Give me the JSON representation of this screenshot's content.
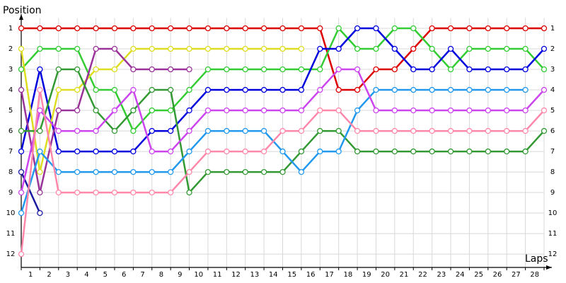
{
  "chart_data": {
    "type": "line",
    "ylabel": "Position",
    "xlabel": "Laps",
    "x": [
      0,
      1,
      2,
      3,
      4,
      5,
      6,
      7,
      8,
      9,
      10,
      11,
      12,
      13,
      14,
      15,
      16,
      17,
      18,
      19,
      20,
      21,
      22,
      23,
      24,
      25,
      26,
      27,
      28
    ],
    "xlim": [
      0,
      28
    ],
    "xticks": [
      {
        "value": 0.5,
        "label": "1"
      },
      {
        "value": 1.5,
        "label": "2"
      },
      {
        "value": 2.5,
        "label": "3"
      },
      {
        "value": 3.5,
        "label": "4"
      },
      {
        "value": 4.5,
        "label": "5"
      },
      {
        "value": 5.5,
        "label": "6"
      },
      {
        "value": 6.5,
        "label": "7"
      },
      {
        "value": 7.5,
        "label": "8"
      },
      {
        "value": 8.5,
        "label": "9"
      },
      {
        "value": 9.5,
        "label": "10"
      },
      {
        "value": 10.5,
        "label": "11"
      },
      {
        "value": 11.5,
        "label": "12"
      },
      {
        "value": 12.5,
        "label": "13"
      },
      {
        "value": 13.5,
        "label": "14"
      },
      {
        "value": 14.5,
        "label": "15"
      },
      {
        "value": 15.5,
        "label": "16"
      },
      {
        "value": 16.5,
        "label": "17"
      },
      {
        "value": 17.5,
        "label": "18"
      },
      {
        "value": 18.5,
        "label": "19"
      },
      {
        "value": 19.5,
        "label": "20"
      },
      {
        "value": 20.5,
        "label": "21"
      },
      {
        "value": 21.5,
        "label": "22"
      },
      {
        "value": 22.5,
        "label": "23"
      },
      {
        "value": 23.5,
        "label": "24"
      },
      {
        "value": 24.5,
        "label": "25"
      },
      {
        "value": 25.5,
        "label": "26"
      },
      {
        "value": 26.5,
        "label": "27"
      },
      {
        "value": 27.5,
        "label": "28"
      }
    ],
    "ylim": [
      12.65,
      0.5
    ],
    "yticks": [
      1,
      2,
      3,
      4,
      5,
      6,
      7,
      8,
      9,
      10,
      11,
      12
    ],
    "grid": true,
    "series": [
      {
        "color": "#dd0000",
        "values": [
          1,
          1,
          1,
          1,
          1,
          1,
          1,
          1,
          1,
          1,
          1,
          1,
          1,
          1,
          1,
          1,
          1,
          4,
          4,
          3,
          3,
          2,
          1,
          1,
          1,
          1,
          1,
          1,
          1
        ]
      },
      {
        "color": "#33cc33",
        "values": [
          3,
          2,
          2,
          2,
          4,
          4,
          6,
          5,
          5,
          4,
          3,
          3,
          3,
          3,
          3,
          3,
          3,
          1,
          2,
          2,
          1,
          1,
          2,
          3,
          2,
          2,
          2,
          2,
          3
        ]
      },
      {
        "color": "#0000dd",
        "values": [
          7,
          3,
          7,
          7,
          7,
          7,
          7,
          6,
          6,
          5,
          4,
          4,
          4,
          4,
          4,
          4,
          2,
          2,
          1,
          1,
          2,
          3,
          3,
          2,
          3,
          3,
          3,
          3,
          2
        ]
      },
      {
        "color": "#1a1aa0",
        "values": [
          8,
          10,
          null,
          null,
          null,
          null,
          null,
          null,
          null,
          null,
          null,
          null,
          null,
          null,
          null,
          null,
          null,
          null,
          null,
          null,
          null,
          null,
          null,
          null,
          null,
          null,
          null,
          null,
          null
        ]
      },
      {
        "color": "#dddd22",
        "values": [
          2,
          8,
          4,
          4,
          3,
          3,
          2,
          2,
          2,
          2,
          2,
          2,
          2,
          2,
          2,
          2,
          null,
          null,
          null,
          null,
          null,
          null,
          null,
          null,
          null,
          null,
          null,
          null,
          null
        ]
      },
      {
        "color": "#993399",
        "values": [
          4,
          9,
          5,
          5,
          2,
          2,
          3,
          3,
          3,
          3,
          null,
          null,
          null,
          null,
          null,
          null,
          null,
          null,
          null,
          null,
          null,
          null,
          null,
          null,
          null,
          null,
          null,
          null,
          null
        ]
      },
      {
        "color": "#339933",
        "values": [
          6,
          6,
          3,
          3,
          5,
          6,
          5,
          4,
          4,
          9,
          8,
          8,
          8,
          8,
          8,
          7,
          6,
          6,
          7,
          7,
          7,
          7,
          7,
          7,
          7,
          7,
          7,
          7,
          6
        ]
      },
      {
        "color": "#2299ee",
        "values": [
          10,
          7,
          8,
          8,
          8,
          8,
          8,
          8,
          8,
          7,
          6,
          6,
          6,
          6,
          7,
          8,
          7,
          7,
          5,
          4,
          4,
          4,
          4,
          4,
          4,
          4,
          4,
          4,
          null
        ]
      },
      {
        "color": "#cc44ee",
        "values": [
          9,
          5,
          6,
          6,
          6,
          5,
          4,
          7,
          7,
          6,
          5,
          5,
          5,
          5,
          5,
          5,
          4,
          3,
          3,
          5,
          5,
          5,
          5,
          5,
          5,
          5,
          5,
          5,
          4
        ]
      },
      {
        "color": "#ff88aa",
        "values": [
          12,
          4,
          9,
          9,
          9,
          9,
          9,
          9,
          9,
          8,
          7,
          7,
          7,
          7,
          6,
          6,
          5,
          5,
          6,
          6,
          6,
          6,
          6,
          6,
          6,
          6,
          6,
          6,
          5
        ]
      }
    ]
  }
}
